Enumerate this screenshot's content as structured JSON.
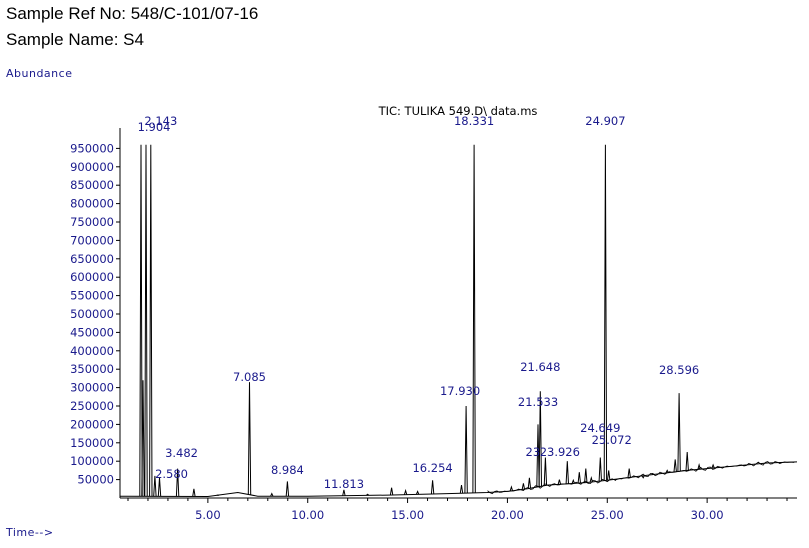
{
  "header": {
    "sample_ref": "Sample Ref No: 548/C-101/07-16",
    "sample_name": "Sample Name: S4"
  },
  "chart_data": {
    "type": "line",
    "title": "TIC: TULIKA 549.D\\ data.ms",
    "ylabel": "Abundance",
    "xlabel": "Time-->",
    "xlim": [
      0.6,
      34.5
    ],
    "ylim": [
      0,
      1000000
    ],
    "x_ticks": [
      5,
      10,
      15,
      20,
      25,
      30
    ],
    "x_tick_labels": [
      "5.00",
      "10.00",
      "15.00",
      "20.00",
      "25.00",
      "30.00"
    ],
    "y_ticks": [
      50000,
      100000,
      150000,
      200000,
      250000,
      300000,
      350000,
      400000,
      450000,
      500000,
      550000,
      600000,
      650000,
      700000,
      750000,
      800000,
      850000,
      900000,
      950000
    ],
    "y_tick_labels": [
      "50000",
      "100000",
      "150000",
      "200000",
      "250000",
      "300000",
      "350000",
      "400000",
      "450000",
      "500000",
      "550000",
      "600000",
      "650000",
      "700000",
      "750000",
      "800000",
      "850000",
      "900000",
      "950000"
    ],
    "labeled_peaks": [
      {
        "label": "1.904",
        "x": 1.904,
        "y": 960000
      },
      {
        "label": "2.143",
        "x": 2.143,
        "y": 960000
      },
      {
        "label": "2.580",
        "x": 2.58,
        "y": 55000
      },
      {
        "label": "3.482",
        "x": 3.482,
        "y": 80000
      },
      {
        "label": "7.085",
        "x": 7.085,
        "y": 315000
      },
      {
        "label": "8.984",
        "x": 8.984,
        "y": 45000
      },
      {
        "label": "11.813",
        "x": 11.813,
        "y": 22000
      },
      {
        "label": "16.254",
        "x": 16.254,
        "y": 48000
      },
      {
        "label": "17.930",
        "x": 17.93,
        "y": 250000
      },
      {
        "label": "18.331",
        "x": 18.331,
        "y": 960000
      },
      {
        "label": "21.533",
        "x": 21.533,
        "y": 200000
      },
      {
        "label": "21.648",
        "x": 21.648,
        "y": 290000
      },
      {
        "label": "23.926",
        "x": 23.926,
        "y": 80000
      },
      {
        "label": "24.649",
        "x": 24.649,
        "y": 110000
      },
      {
        "label": "24.907",
        "x": 24.907,
        "y": 960000
      },
      {
        "label": "25.072",
        "x": 25.072,
        "y": 75000
      },
      {
        "label": "28.596",
        "x": 28.596,
        "y": 285000
      }
    ],
    "extra_peaks": [
      {
        "x": 1.65,
        "y": 960000
      },
      {
        "x": 1.75,
        "y": 320000
      },
      {
        "x": 2.35,
        "y": 60000
      },
      {
        "x": 4.3,
        "y": 25000
      },
      {
        "x": 5.5,
        "y": 8000
      },
      {
        "x": 8.2,
        "y": 12000
      },
      {
        "x": 13.0,
        "y": 10000
      },
      {
        "x": 14.2,
        "y": 28000
      },
      {
        "x": 14.9,
        "y": 20000
      },
      {
        "x": 15.5,
        "y": 18000
      },
      {
        "x": 17.7,
        "y": 35000
      },
      {
        "x": 20.2,
        "y": 30000
      },
      {
        "x": 20.8,
        "y": 40000
      },
      {
        "x": 21.1,
        "y": 55000
      },
      {
        "x": 21.9,
        "y": 110000
      },
      {
        "x": 22.6,
        "y": 50000
      },
      {
        "x": 23.0,
        "y": 100000
      },
      {
        "x": 23.3,
        "y": 48000
      },
      {
        "x": 23.6,
        "y": 70000
      },
      {
        "x": 24.2,
        "y": 55000
      },
      {
        "x": 25.4,
        "y": 48000
      },
      {
        "x": 25.7,
        "y": 52000
      },
      {
        "x": 26.1,
        "y": 80000
      },
      {
        "x": 26.8,
        "y": 55000
      },
      {
        "x": 27.3,
        "y": 65000
      },
      {
        "x": 28.0,
        "y": 75000
      },
      {
        "x": 28.4,
        "y": 105000
      },
      {
        "x": 29.0,
        "y": 125000
      },
      {
        "x": 29.6,
        "y": 90000
      },
      {
        "x": 30.3,
        "y": 90000
      }
    ],
    "baseline": [
      [
        0.6,
        5000
      ],
      [
        5,
        4000
      ],
      [
        6.5,
        15000
      ],
      [
        7.5,
        5000
      ],
      [
        10,
        5000
      ],
      [
        14,
        8000
      ],
      [
        17,
        12000
      ],
      [
        19,
        15000
      ],
      [
        20,
        18000
      ],
      [
        21,
        25000
      ],
      [
        22,
        35000
      ],
      [
        24,
        42000
      ],
      [
        25,
        48000
      ],
      [
        27,
        62000
      ],
      [
        29,
        75000
      ],
      [
        31,
        85000
      ],
      [
        33,
        95000
      ],
      [
        34.5,
        98000
      ]
    ],
    "grid": false
  }
}
